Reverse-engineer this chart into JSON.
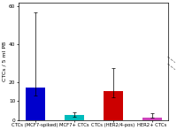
{
  "categories": [
    "CTCs (MCF7-spiked)",
    "MCF7+ CTCs",
    "CTCs (HER2/4-pos)",
    "HER2+ CTCs"
  ],
  "values": [
    17.0,
    2.5,
    15.5,
    1.5
  ],
  "bar_colors": [
    "#0000CC",
    "#00BBBB",
    "#CC0000",
    "#CC44BB"
  ],
  "error_upper": [
    40.0,
    1.5,
    12.0,
    2.0
  ],
  "error_lower": [
    4.0,
    0.7,
    3.5,
    0.4
  ],
  "ylabel": "CTCs / 5 ml PB",
  "ylim": [
    0,
    62
  ],
  "yticks": [
    0,
    10,
    20,
    40,
    60
  ],
  "ytick_labels": [
    "0",
    "10",
    "20",
    "40",
    "60"
  ],
  "bar_width": 0.5,
  "figsize": [
    2.0,
    1.47
  ],
  "dpi": 100,
  "bg_color": "#FFFFFF",
  "xlabel_fontsize": 3.8,
  "ylabel_fontsize": 4.5,
  "tick_fontsize": 4.2
}
